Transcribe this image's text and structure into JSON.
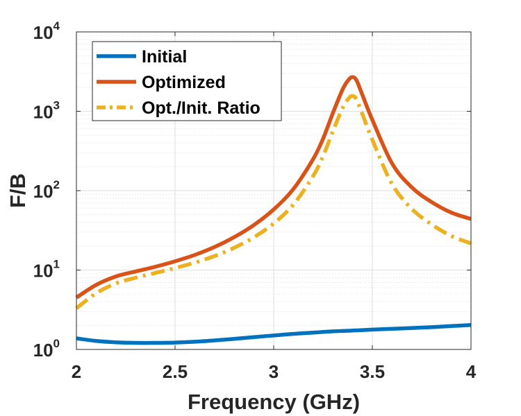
{
  "chart_data": {
    "type": "line",
    "title": "",
    "xlabel": "Frequency (GHz)",
    "ylabel": "F/B",
    "xlim": [
      2,
      4
    ],
    "ylim": [
      1,
      10000
    ],
    "yscale": "log",
    "grid": true,
    "minor_grid": true,
    "legend_position": "top-left",
    "x_ticks": [
      {
        "value": 2,
        "label": "2"
      },
      {
        "value": 2.5,
        "label": "2.5"
      },
      {
        "value": 3,
        "label": "3"
      },
      {
        "value": 3.5,
        "label": "3.5"
      },
      {
        "value": 4,
        "label": "4"
      }
    ],
    "y_ticks": [
      {
        "value": 1,
        "base": "10",
        "exp": "0"
      },
      {
        "value": 10,
        "base": "10",
        "exp": "1"
      },
      {
        "value": 100,
        "base": "10",
        "exp": "2"
      },
      {
        "value": 1000,
        "base": "10",
        "exp": "3"
      },
      {
        "value": 10000,
        "base": "10",
        "exp": "4"
      }
    ],
    "x": [
      2.0,
      2.1,
      2.2,
      2.3,
      2.4,
      2.5,
      2.6,
      2.7,
      2.8,
      2.9,
      3.0,
      3.1,
      3.2,
      3.25,
      3.3,
      3.35,
      3.38,
      3.4,
      3.42,
      3.45,
      3.5,
      3.6,
      3.7,
      3.8,
      3.9,
      4.0
    ],
    "series": [
      {
        "name": "Initial",
        "color": "#0072BD",
        "dash": "solid",
        "values": [
          1.38,
          1.28,
          1.23,
          1.21,
          1.21,
          1.22,
          1.25,
          1.3,
          1.36,
          1.43,
          1.5,
          1.57,
          1.63,
          1.66,
          1.69,
          1.71,
          1.72,
          1.73,
          1.74,
          1.75,
          1.78,
          1.82,
          1.86,
          1.91,
          1.97,
          2.03
        ]
      },
      {
        "name": "Optimized",
        "color": "#D95319",
        "dash": "solid",
        "values": [
          4.5,
          6.5,
          8.3,
          9.6,
          11.0,
          12.9,
          15.5,
          19.5,
          26.0,
          37.0,
          58.0,
          105.0,
          250.0,
          450.0,
          950.0,
          1900.0,
          2500.0,
          2700.0,
          2450.0,
          1600.0,
          780.0,
          220.0,
          110.0,
          72.0,
          53.0,
          44.0
        ]
      },
      {
        "name": "Opt./Init. Ratio",
        "color": "#EDB120",
        "dash": "dashdot",
        "values": [
          3.3,
          5.1,
          6.8,
          8.0,
          9.2,
          10.6,
          12.4,
          15.0,
          19.1,
          25.9,
          38.7,
          66.9,
          153.0,
          271.0,
          562.0,
          1110.0,
          1450.0,
          1560.0,
          1410.0,
          915.0,
          438.0,
          121.0,
          59.0,
          37.7,
          26.9,
          21.7
        ]
      }
    ]
  }
}
